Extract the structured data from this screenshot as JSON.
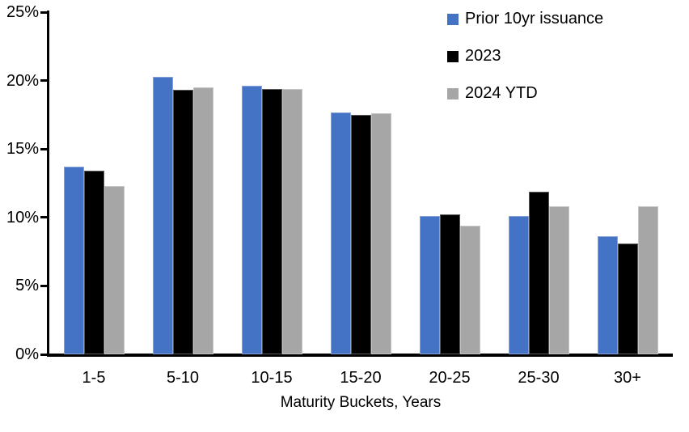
{
  "chart_data": {
    "type": "bar",
    "title": "",
    "xlabel": "Maturity Buckets, Years",
    "ylabel": "",
    "ylim": [
      0,
      25
    ],
    "ytick_step": 5,
    "ytick_labels": [
      "0%",
      "5%",
      "10%",
      "15%",
      "20%",
      "25%"
    ],
    "grid": false,
    "legend_position": "top-right",
    "categories": [
      "1-5",
      "5-10",
      "10-15",
      "15-20",
      "20-25",
      "25-30",
      "30+"
    ],
    "series": [
      {
        "name": "Prior 10yr issuance",
        "color": "#4472C4",
        "values": [
          13.7,
          20.3,
          19.6,
          17.7,
          10.1,
          10.1,
          8.6
        ]
      },
      {
        "name": "2023",
        "color": "#000000",
        "values": [
          13.4,
          19.3,
          19.4,
          17.5,
          10.2,
          11.9,
          8.1
        ]
      },
      {
        "name": "2024 YTD",
        "color": "#A6A6A6",
        "values": [
          12.3,
          19.5,
          19.4,
          17.6,
          9.4,
          10.8,
          10.8
        ]
      }
    ],
    "colors": {
      "axis": "#000000",
      "background": "#FFFFFF"
    }
  }
}
